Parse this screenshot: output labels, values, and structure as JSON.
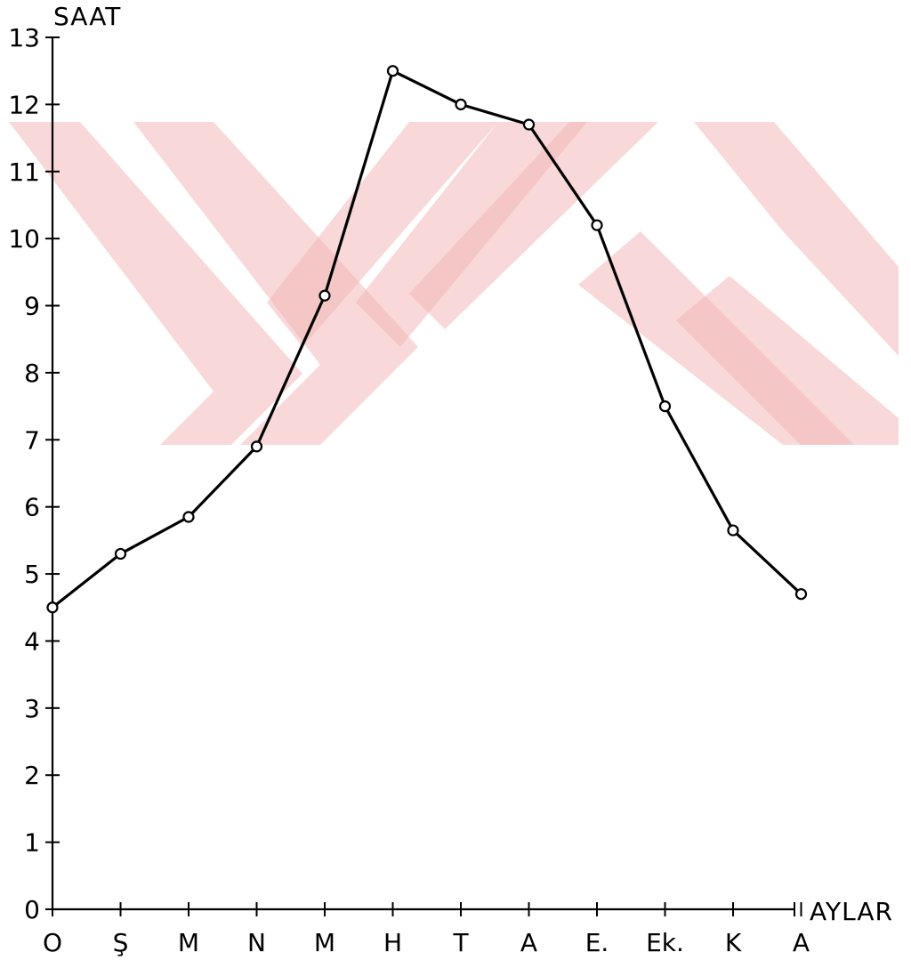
{
  "chart_data": {
    "type": "line",
    "title": "",
    "xlabel": "AYLAR",
    "ylabel": "SAAT",
    "categories": [
      "O",
      "Ş",
      "M",
      "N",
      "M",
      "H",
      "T",
      "A",
      "E.",
      "Ek.",
      "K",
      "A"
    ],
    "series": [
      {
        "values": [
          4.5,
          5.3,
          5.85,
          6.9,
          9.15,
          12.5,
          12.0,
          11.7,
          10.2,
          7.5,
          5.65,
          4.7
        ]
      }
    ],
    "y_ticks": [
      "0",
      "1",
      "2",
      "3",
      "4",
      "5",
      "6",
      "7",
      "8",
      "9",
      "10",
      "11",
      "12",
      "13"
    ],
    "ylim": [
      0,
      13
    ],
    "grid": false,
    "markers": "open-circle",
    "colors": {
      "line": "#000000",
      "watermark": "#f2b8b8"
    }
  }
}
